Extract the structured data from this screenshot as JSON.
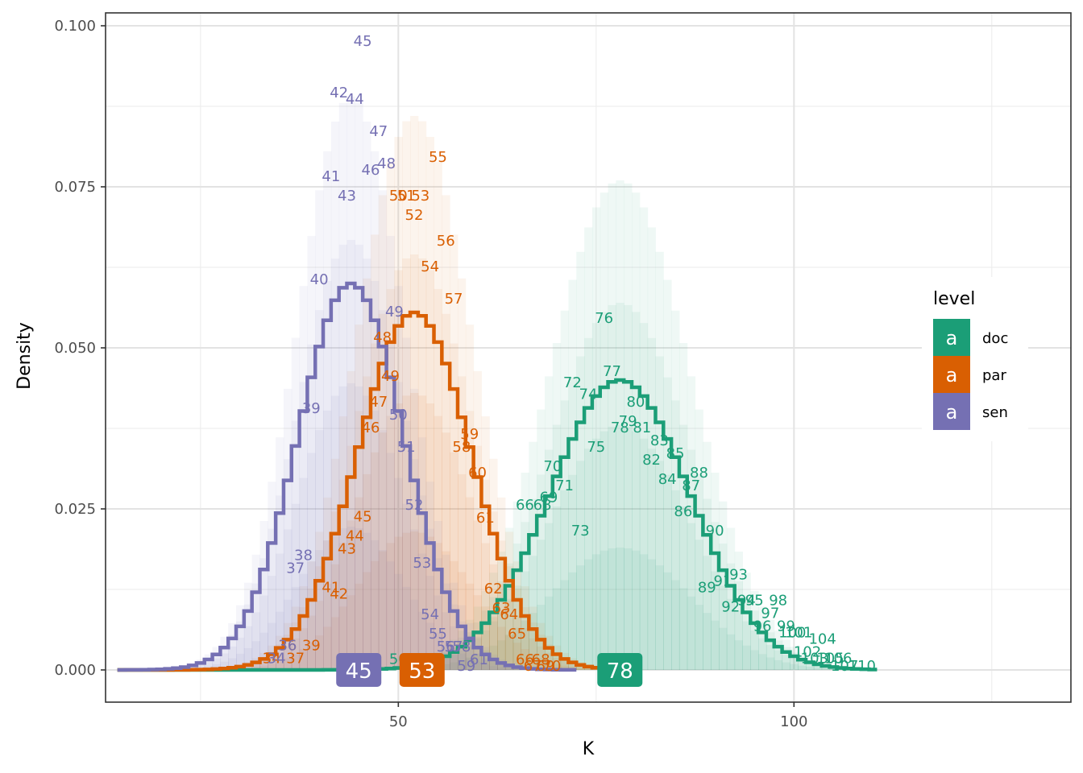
{
  "chart_data": {
    "type": "line",
    "xlabel": "K",
    "ylabel": "Density",
    "xlim": [
      13,
      135
    ],
    "ylim": [
      -0.005,
      0.102
    ],
    "x_ticks": [
      {
        "value": 50,
        "label": "50"
      },
      {
        "value": 100,
        "label": "100"
      }
    ],
    "y_ticks": [
      {
        "value": 0.0,
        "label": "0.000"
      },
      {
        "value": 0.025,
        "label": "0.025"
      },
      {
        "value": 0.05,
        "label": "0.050"
      },
      {
        "value": 0.075,
        "label": "0.075"
      },
      {
        "value": 0.1,
        "label": "0.100"
      }
    ],
    "grid": true,
    "legend": {
      "title": "level",
      "position": "right",
      "key_glyph": "a",
      "entries": [
        {
          "label": "doc",
          "color": "#1b9e77"
        },
        {
          "label": "par",
          "color": "#d95f02"
        },
        {
          "label": "sen",
          "color": "#7570b3"
        }
      ]
    },
    "series": [
      {
        "name": "doc",
        "color": "#1b9e77",
        "mode": 78,
        "mode_label": "78",
        "mean": 78,
        "sd": 8.9,
        "x_range": [
          49,
          110
        ],
        "peak_halo": 0.076,
        "labels": [
          {
            "text": "50",
            "x": 50,
            "y": 0.0017
          },
          {
            "text": "66",
            "x": 66,
            "y": 0.0256
          },
          {
            "text": "68",
            "x": 68.2,
            "y": 0.0256
          },
          {
            "text": "69",
            "x": 69,
            "y": 0.0268
          },
          {
            "text": "70",
            "x": 69.5,
            "y": 0.0316
          },
          {
            "text": "71",
            "x": 71,
            "y": 0.0286
          },
          {
            "text": "72",
            "x": 72,
            "y": 0.0446
          },
          {
            "text": "73",
            "x": 73,
            "y": 0.0216
          },
          {
            "text": "74",
            "x": 74,
            "y": 0.0428
          },
          {
            "text": "75",
            "x": 75,
            "y": 0.0346
          },
          {
            "text": "76",
            "x": 76,
            "y": 0.0546
          },
          {
            "text": "77",
            "x": 77,
            "y": 0.0464
          },
          {
            "text": "78",
            "x": 78,
            "y": 0.0376
          },
          {
            "text": "79",
            "x": 79,
            "y": 0.0386
          },
          {
            "text": "80",
            "x": 80,
            "y": 0.0416
          },
          {
            "text": "81",
            "x": 80.8,
            "y": 0.0376
          },
          {
            "text": "82",
            "x": 82,
            "y": 0.0326
          },
          {
            "text": "83",
            "x": 83,
            "y": 0.0356
          },
          {
            "text": "84",
            "x": 84,
            "y": 0.0296
          },
          {
            "text": "85",
            "x": 85,
            "y": 0.0336
          },
          {
            "text": "86",
            "x": 86,
            "y": 0.0246
          },
          {
            "text": "87",
            "x": 87,
            "y": 0.0286
          },
          {
            "text": "88",
            "x": 88,
            "y": 0.0306
          },
          {
            "text": "89",
            "x": 89,
            "y": 0.0128
          },
          {
            "text": "90",
            "x": 90,
            "y": 0.0216
          },
          {
            "text": "91",
            "x": 91,
            "y": 0.0138
          },
          {
            "text": "92",
            "x": 92,
            "y": 0.0098
          },
          {
            "text": "93",
            "x": 93,
            "y": 0.0148
          },
          {
            "text": "94",
            "x": 94,
            "y": 0.0108
          },
          {
            "text": "95",
            "x": 95,
            "y": 0.0108
          },
          {
            "text": "96",
            "x": 96,
            "y": 0.0068
          },
          {
            "text": "97",
            "x": 97,
            "y": 0.0088
          },
          {
            "text": "98",
            "x": 98,
            "y": 0.0108
          },
          {
            "text": "99",
            "x": 99,
            "y": 0.0068
          },
          {
            "text": "100",
            "x": 99.8,
            "y": 0.0058
          },
          {
            "text": "101",
            "x": 100.6,
            "y": 0.0058
          },
          {
            "text": "102",
            "x": 101.7,
            "y": 0.0028
          },
          {
            "text": "103",
            "x": 102.6,
            "y": 0.0018
          },
          {
            "text": "104",
            "x": 103.6,
            "y": 0.0048
          },
          {
            "text": "105",
            "x": 104.6,
            "y": 0.0018
          },
          {
            "text": "106",
            "x": 105.6,
            "y": 0.0018
          },
          {
            "text": "107",
            "x": 106.4,
            "y": 0.0006
          },
          {
            "text": "110",
            "x": 108.6,
            "y": 0.0006
          }
        ]
      },
      {
        "name": "par",
        "color": "#d95f02",
        "mode": 53,
        "mode_label": "53",
        "mean": 52,
        "sd": 7.2,
        "x_range": [
          22,
          80
        ],
        "peak_halo": 0.086,
        "labels": [
          {
            "text": "34",
            "x": 34,
            "y": 0.0018
          },
          {
            "text": "36",
            "x": 36,
            "y": 0.0038
          },
          {
            "text": "37",
            "x": 37,
            "y": 0.0018
          },
          {
            "text": "39",
            "x": 39,
            "y": 0.0038
          },
          {
            "text": "41",
            "x": 41.5,
            "y": 0.0128
          },
          {
            "text": "42",
            "x": 42.5,
            "y": 0.0118
          },
          {
            "text": "43",
            "x": 43.5,
            "y": 0.0188
          },
          {
            "text": "44",
            "x": 44.5,
            "y": 0.0208
          },
          {
            "text": "45",
            "x": 45.5,
            "y": 0.0238
          },
          {
            "text": "46",
            "x": 46.5,
            "y": 0.0376
          },
          {
            "text": "47",
            "x": 47.5,
            "y": 0.0416
          },
          {
            "text": "48",
            "x": 48,
            "y": 0.0516
          },
          {
            "text": "49",
            "x": 49,
            "y": 0.0456
          },
          {
            "text": "50",
            "x": 50,
            "y": 0.0736
          },
          {
            "text": "51",
            "x": 51,
            "y": 0.0736
          },
          {
            "text": "52",
            "x": 52,
            "y": 0.0706
          },
          {
            "text": "53",
            "x": 52.8,
            "y": 0.0736
          },
          {
            "text": "54",
            "x": 54,
            "y": 0.0626
          },
          {
            "text": "55",
            "x": 55,
            "y": 0.0796
          },
          {
            "text": "56",
            "x": 56,
            "y": 0.0666
          },
          {
            "text": "57",
            "x": 57,
            "y": 0.0576
          },
          {
            "text": "58",
            "x": 58,
            "y": 0.0346
          },
          {
            "text": "59",
            "x": 59,
            "y": 0.0366
          },
          {
            "text": "60",
            "x": 60,
            "y": 0.0306
          },
          {
            "text": "61",
            "x": 61,
            "y": 0.0236
          },
          {
            "text": "62",
            "x": 62,
            "y": 0.0126
          },
          {
            "text": "63",
            "x": 63,
            "y": 0.0096
          },
          {
            "text": "64",
            "x": 64,
            "y": 0.0086
          },
          {
            "text": "65",
            "x": 65,
            "y": 0.0056
          },
          {
            "text": "66",
            "x": 66,
            "y": 0.0016
          },
          {
            "text": "67",
            "x": 67,
            "y": 0.0006
          },
          {
            "text": "68",
            "x": 68,
            "y": 0.0016
          },
          {
            "text": "69",
            "x": 68.6,
            "y": 0.0006
          },
          {
            "text": "70",
            "x": 69.4,
            "y": 0.0006
          }
        ]
      },
      {
        "name": "sen",
        "color": "#7570b3",
        "mode": 45,
        "mode_label": "45",
        "mean": 44,
        "sd": 6.7,
        "x_range": [
          19,
          72
        ],
        "peak_halo": 0.089,
        "labels": [
          {
            "text": "34",
            "x": 34.6,
            "y": 0.0018
          },
          {
            "text": "36",
            "x": 36,
            "y": 0.0038
          },
          {
            "text": "37",
            "x": 37,
            "y": 0.0158
          },
          {
            "text": "38",
            "x": 38,
            "y": 0.0178
          },
          {
            "text": "39",
            "x": 39,
            "y": 0.0406
          },
          {
            "text": "40",
            "x": 40,
            "y": 0.0606
          },
          {
            "text": "41",
            "x": 41.5,
            "y": 0.0766
          },
          {
            "text": "42",
            "x": 42.5,
            "y": 0.0896
          },
          {
            "text": "43",
            "x": 43.5,
            "y": 0.0736
          },
          {
            "text": "44",
            "x": 44.5,
            "y": 0.0886
          },
          {
            "text": "45",
            "x": 45.5,
            "y": 0.0976
          },
          {
            "text": "46",
            "x": 46.5,
            "y": 0.0776
          },
          {
            "text": "47",
            "x": 47.5,
            "y": 0.0836
          },
          {
            "text": "48",
            "x": 48.5,
            "y": 0.0786
          },
          {
            "text": "49",
            "x": 49.5,
            "y": 0.0556
          },
          {
            "text": "50",
            "x": 50,
            "y": 0.0396
          },
          {
            "text": "51",
            "x": 51,
            "y": 0.0346
          },
          {
            "text": "52",
            "x": 52,
            "y": 0.0256
          },
          {
            "text": "53",
            "x": 53,
            "y": 0.0166
          },
          {
            "text": "54",
            "x": 54,
            "y": 0.0086
          },
          {
            "text": "55",
            "x": 55,
            "y": 0.0056
          },
          {
            "text": "56",
            "x": 56,
            "y": 0.0036
          },
          {
            "text": "57",
            "x": 57,
            "y": 0.0036
          },
          {
            "text": "58",
            "x": 58,
            "y": 0.0036
          },
          {
            "text": "59",
            "x": 58.6,
            "y": 0.0006
          },
          {
            "text": "61",
            "x": 60.2,
            "y": 0.0016
          }
        ]
      }
    ]
  }
}
